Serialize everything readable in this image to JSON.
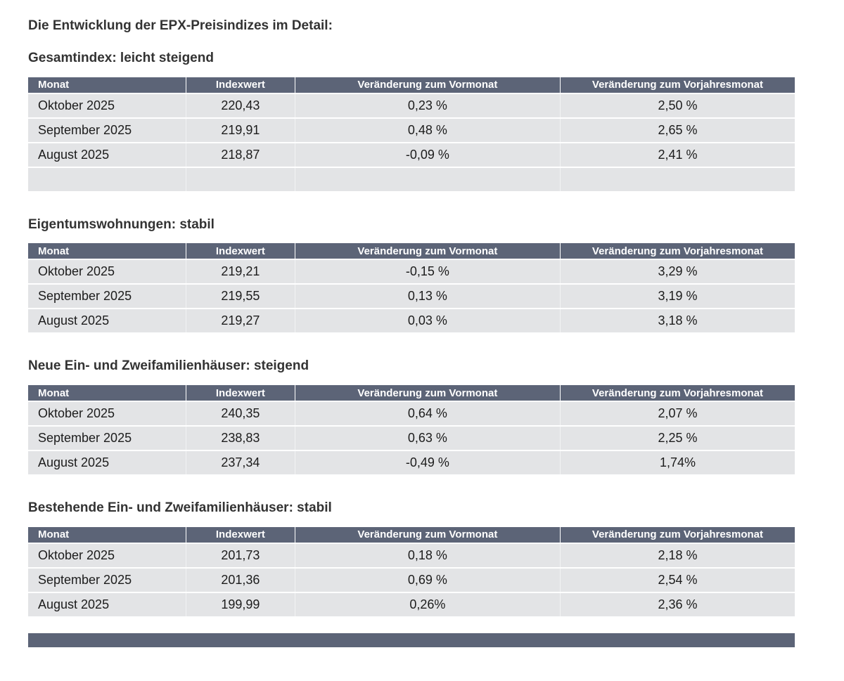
{
  "page": {
    "title": "Die Entwicklung der EPX-Preisindizes im Detail:"
  },
  "table_headers": [
    "Monat",
    "Indexwert",
    "Veränderung zum Vormonat",
    "Veränderung zum Vorjahresmonat"
  ],
  "sections": [
    {
      "heading": "Gesamtindex: leicht steigend",
      "rows": [
        [
          "Oktober 2025",
          "220,43",
          "0,23 %",
          "2,50 %"
        ],
        [
          "September 2025",
          "219,91",
          "0,48 %",
          "2,65 %"
        ],
        [
          "August 2025",
          "218,87",
          "-0,09 %",
          "2,41 %"
        ],
        [
          "",
          "",
          "",
          ""
        ]
      ]
    },
    {
      "heading": "Eigentumswohnungen: stabil",
      "rows": [
        [
          "Oktober 2025",
          "219,21",
          "-0,15 %",
          "3,29 %"
        ],
        [
          "September 2025",
          "219,55",
          "0,13 %",
          "3,19 %"
        ],
        [
          "August 2025",
          "219,27",
          "0,03 %",
          "3,18 %"
        ]
      ]
    },
    {
      "heading": "Neue Ein- und Zweifamilienhäuser: steigend",
      "rows": [
        [
          "Oktober 2025",
          "240,35",
          "0,64 %",
          "2,07 %"
        ],
        [
          "September 2025",
          "238,83",
          "0,63 %",
          "2,25 %"
        ],
        [
          "August 2025",
          "237,34",
          "-0,49 %",
          "1,74%"
        ]
      ]
    },
    {
      "heading": "Bestehende Ein- und Zweifamilienhäuser: stabil",
      "rows": [
        [
          "Oktober 2025",
          "201,73",
          "0,18 %",
          "2,18 %"
        ],
        [
          "September 2025",
          "201,36",
          "0,69 %",
          "2,54 %"
        ],
        [
          "August 2025",
          "199,99",
          "0,26%",
          "2,36 %"
        ]
      ]
    }
  ],
  "colors": {
    "header_bg": "#5c6477",
    "header_text": "#ffffff",
    "row_bg": "#e3e4e6",
    "heading_text": "#333333",
    "body_text": "#1c1c1c"
  }
}
